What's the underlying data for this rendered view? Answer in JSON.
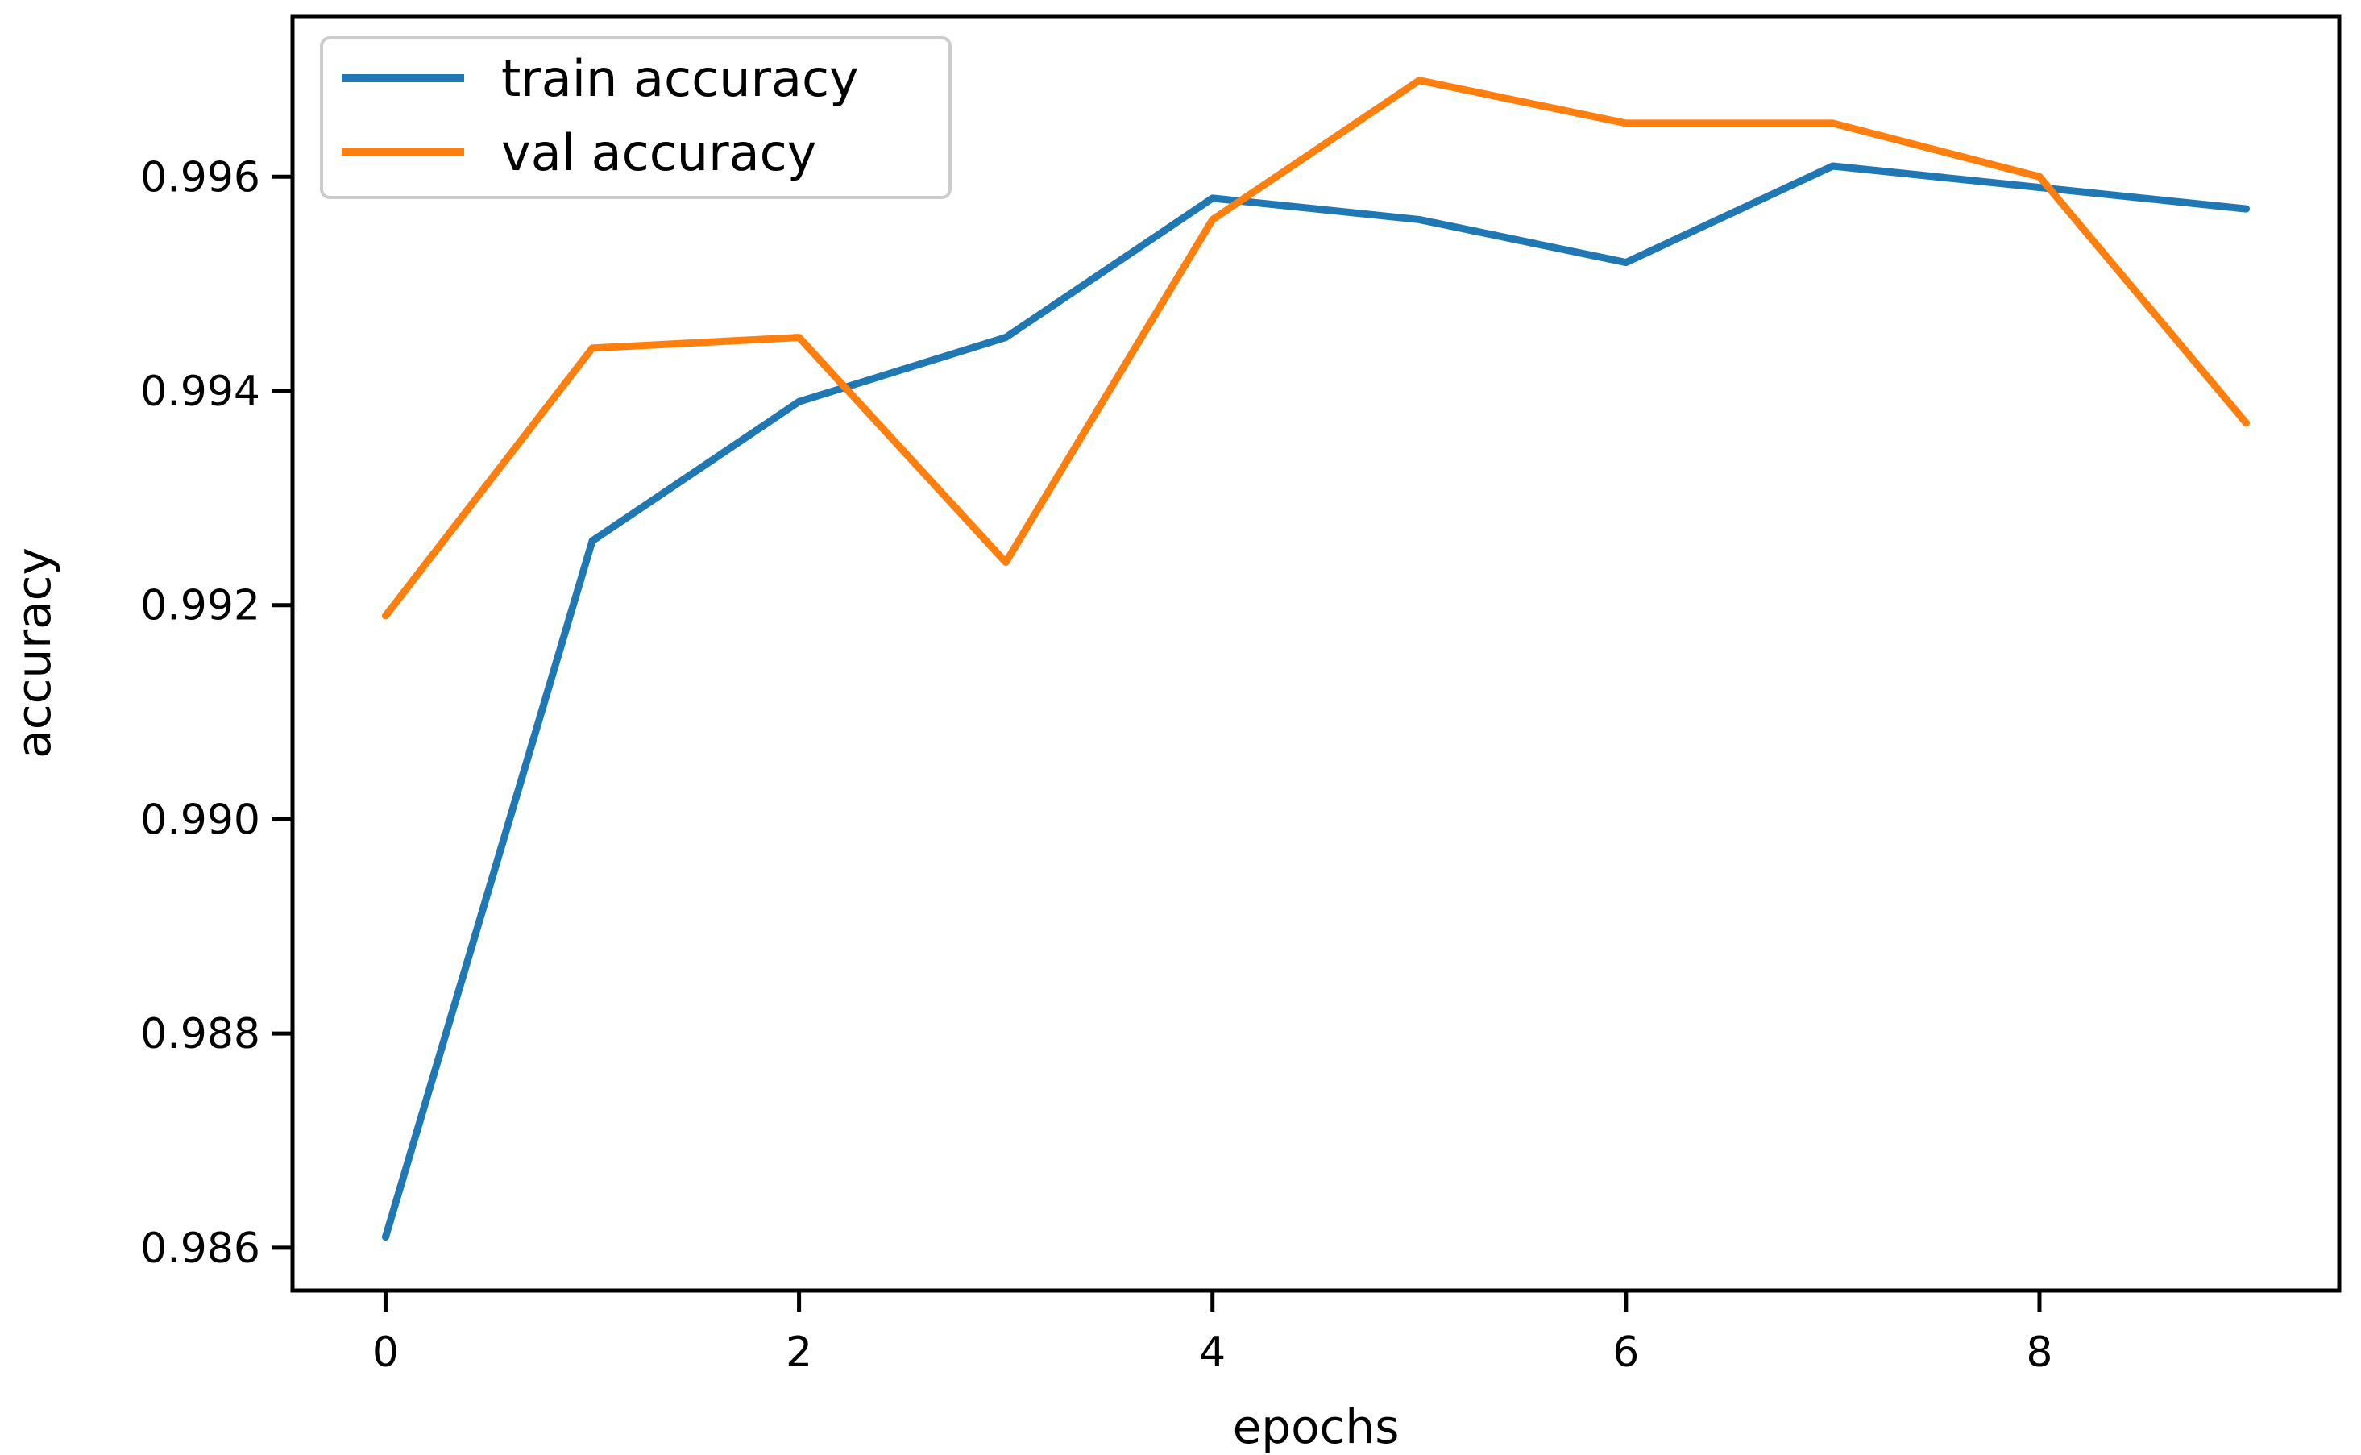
{
  "chart_data": {
    "type": "line",
    "title": "",
    "xlabel": "epochs",
    "ylabel": "accuracy",
    "x": [
      0,
      1,
      2,
      3,
      4,
      5,
      6,
      7,
      8,
      9
    ],
    "series": [
      {
        "name": "train accuracy",
        "color": "#1f77b4",
        "values": [
          0.9861,
          0.9926,
          0.9939,
          0.9945,
          0.9958,
          0.9956,
          0.9952,
          0.9961,
          0.9959,
          0.9957
        ]
      },
      {
        "name": "val accuracy",
        "color": "#ff7f0e",
        "values": [
          0.9919,
          0.9944,
          0.9945,
          0.9924,
          0.9956,
          0.9969,
          0.9965,
          0.9965,
          0.996,
          0.9937
        ]
      }
    ],
    "xlim": [
      -0.45,
      9.45
    ],
    "ylim": [
      0.9856,
      0.9975
    ],
    "xticks": {
      "values": [
        0,
        2,
        4,
        6,
        8
      ],
      "labels": [
        "0",
        "2",
        "4",
        "6",
        "8"
      ]
    },
    "yticks": {
      "values": [
        0.996,
        0.994,
        0.992,
        0.99,
        0.988,
        0.986
      ],
      "labels": [
        "0.996",
        "0.994",
        "0.992",
        "0.990",
        "0.988",
        "0.986"
      ]
    },
    "grid": false,
    "legend": {
      "position": "upper left",
      "entries": [
        "train accuracy",
        "val accuracy"
      ],
      "border_color": "#cccccc",
      "background": "#ffffff"
    },
    "axis_color": "#000000",
    "background": "#ffffff"
  }
}
